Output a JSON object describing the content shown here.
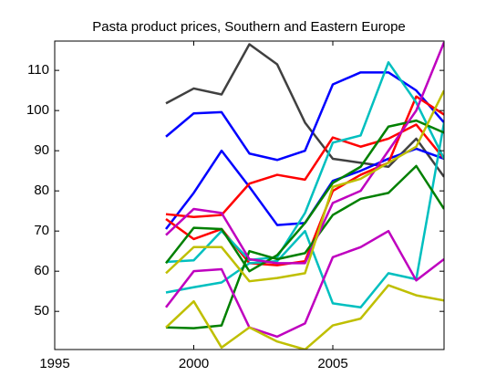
{
  "chart_data": {
    "type": "line",
    "title": "Pasta product prices, Southern and Eastern Europe",
    "x": [
      1999,
      2000,
      2001,
      2002,
      2003,
      2004,
      2005,
      2006,
      2007,
      2008,
      2009
    ],
    "xlim": [
      1995,
      2009
    ],
    "xticks": [
      1995,
      2000,
      2005
    ],
    "ylim": [
      40.5,
      117.3
    ],
    "yticks": [
      50,
      60,
      70,
      80,
      90,
      100,
      110
    ],
    "grid": false,
    "series": [
      {
        "color": "#404040",
        "values": [
          101.8,
          105.5,
          104,
          116.5,
          111.5,
          97,
          88,
          87,
          86,
          93,
          83.5
        ]
      },
      {
        "color": "#0000ff",
        "values": [
          93.5,
          99.3,
          99.6,
          89.3,
          87.7,
          90,
          106.5,
          109.5,
          109.5,
          105,
          97
        ]
      },
      {
        "color": "#0000ff",
        "values": [
          70.5,
          79.5,
          90,
          81,
          71.5,
          72,
          82.5,
          85,
          88,
          90.5,
          88
        ]
      },
      {
        "color": "#ff0000",
        "values": [
          74.2,
          73.5,
          74,
          81.8,
          84,
          82.8,
          93.3,
          91,
          93,
          96.5,
          88
        ]
      },
      {
        "color": "#ff0000",
        "values": [
          73,
          68,
          70.5,
          62,
          61.5,
          62.5,
          80,
          84,
          87,
          103.5,
          99
        ]
      },
      {
        "color": "#00bfbf",
        "values": [
          62.3,
          62.7,
          70,
          62.8,
          63.5,
          74.5,
          92,
          93.8,
          112,
          102,
          88
        ]
      },
      {
        "color": "#00bfbf",
        "values": [
          54.7,
          56,
          57.2,
          62,
          62.5,
          70,
          52,
          51,
          59.5,
          58,
          97
        ]
      },
      {
        "color": "#008000",
        "values": [
          62,
          70.8,
          70.5,
          60,
          64,
          72,
          82,
          86,
          96,
          97.5,
          94.5
        ]
      },
      {
        "color": "#008000",
        "values": [
          46,
          45.8,
          46.5,
          65,
          63,
          64.5,
          74,
          78,
          79.5,
          86.2,
          75.5
        ]
      },
      {
        "color": "#bf00bf",
        "values": [
          69,
          75.5,
          74.5,
          63,
          62,
          62,
          77,
          80,
          90,
          100,
          117
        ]
      },
      {
        "color": "#bf00bf",
        "values": [
          51,
          60,
          60.5,
          46,
          43.7,
          47,
          63.5,
          66,
          70,
          57.7,
          63
        ]
      },
      {
        "color": "#bfbf00",
        "values": [
          59.5,
          66,
          66,
          57.5,
          58.3,
          59.5,
          81,
          83,
          87,
          91,
          105
        ]
      },
      {
        "color": "#bfbf00",
        "values": [
          46,
          52.5,
          41,
          46,
          42.5,
          40.5,
          46.5,
          48.2,
          56.5,
          54,
          52.7
        ]
      }
    ]
  }
}
